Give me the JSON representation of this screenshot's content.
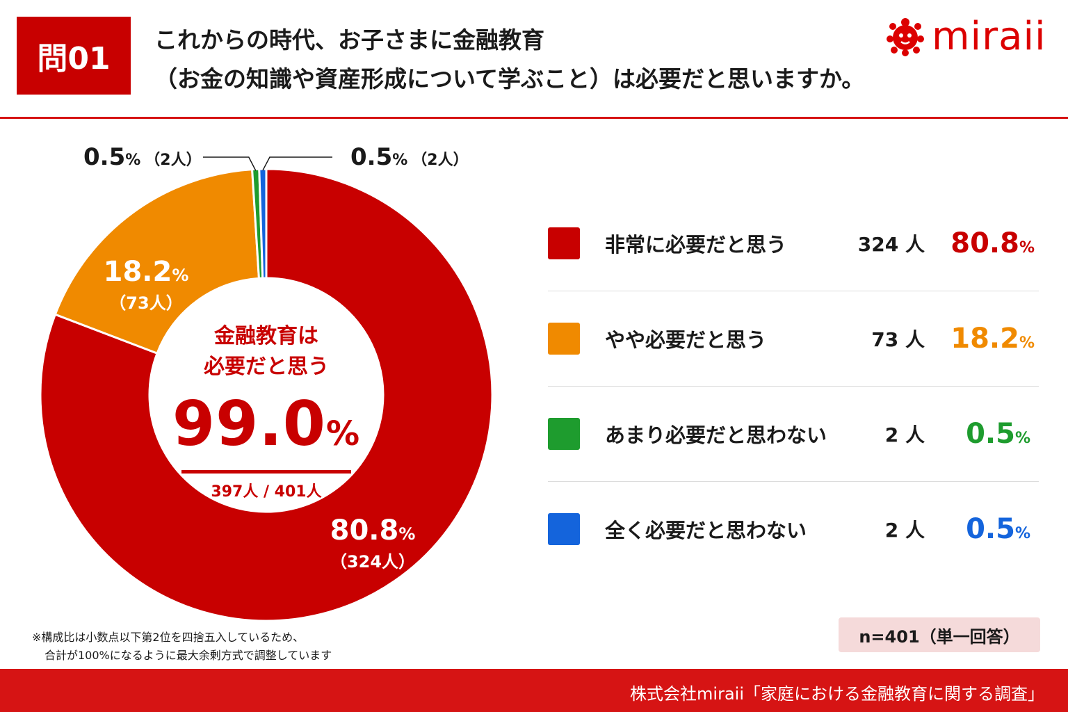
{
  "header": {
    "badge": "問01",
    "title_line1": "これからの時代、お子さまに金融教育",
    "title_line2": "（お金の知識や資産形成について学ぶこと）は必要だと思いますか。",
    "logo_text": "miraii",
    "logo_color": "#dc0000"
  },
  "chart_data": {
    "type": "pie",
    "style": "donut",
    "slices": [
      {
        "label": "非常に必要だと思う",
        "count": 324,
        "count_text": "324 人",
        "percent": 80.8,
        "percent_text": "80.8",
        "count_paren": "（324人）",
        "color": "#c80000"
      },
      {
        "label": "やや必要だと思う",
        "count": 73,
        "count_text": "73 人",
        "percent": 18.2,
        "percent_text": "18.2",
        "count_paren": "（73人）",
        "color": "#f08a00"
      },
      {
        "label": "あまり必要だと思わない",
        "count": 2,
        "count_text": "2 人",
        "percent": 0.5,
        "percent_text": "0.5",
        "count_paren": "（2人）",
        "color": "#1e9c2e"
      },
      {
        "label": "全く必要だと思わない",
        "count": 2,
        "count_text": "2 人",
        "percent": 0.5,
        "percent_text": "0.5",
        "count_paren": "（2人）",
        "color": "#1464dc"
      }
    ],
    "percent_sign": "%",
    "center": {
      "line1": "金融教育は",
      "line2": "必要だと思う",
      "value": "99.0",
      "ratio": "397人 / 401人"
    }
  },
  "note": {
    "line1": "※構成比は小数点以下第2位を四捨五入しているため、",
    "line2": "合計が100%になるように最大余剰方式で調整しています"
  },
  "sample": "n=401（単一回答）",
  "footer": "株式会社miraii「家庭における金融教育に関する調査」"
}
